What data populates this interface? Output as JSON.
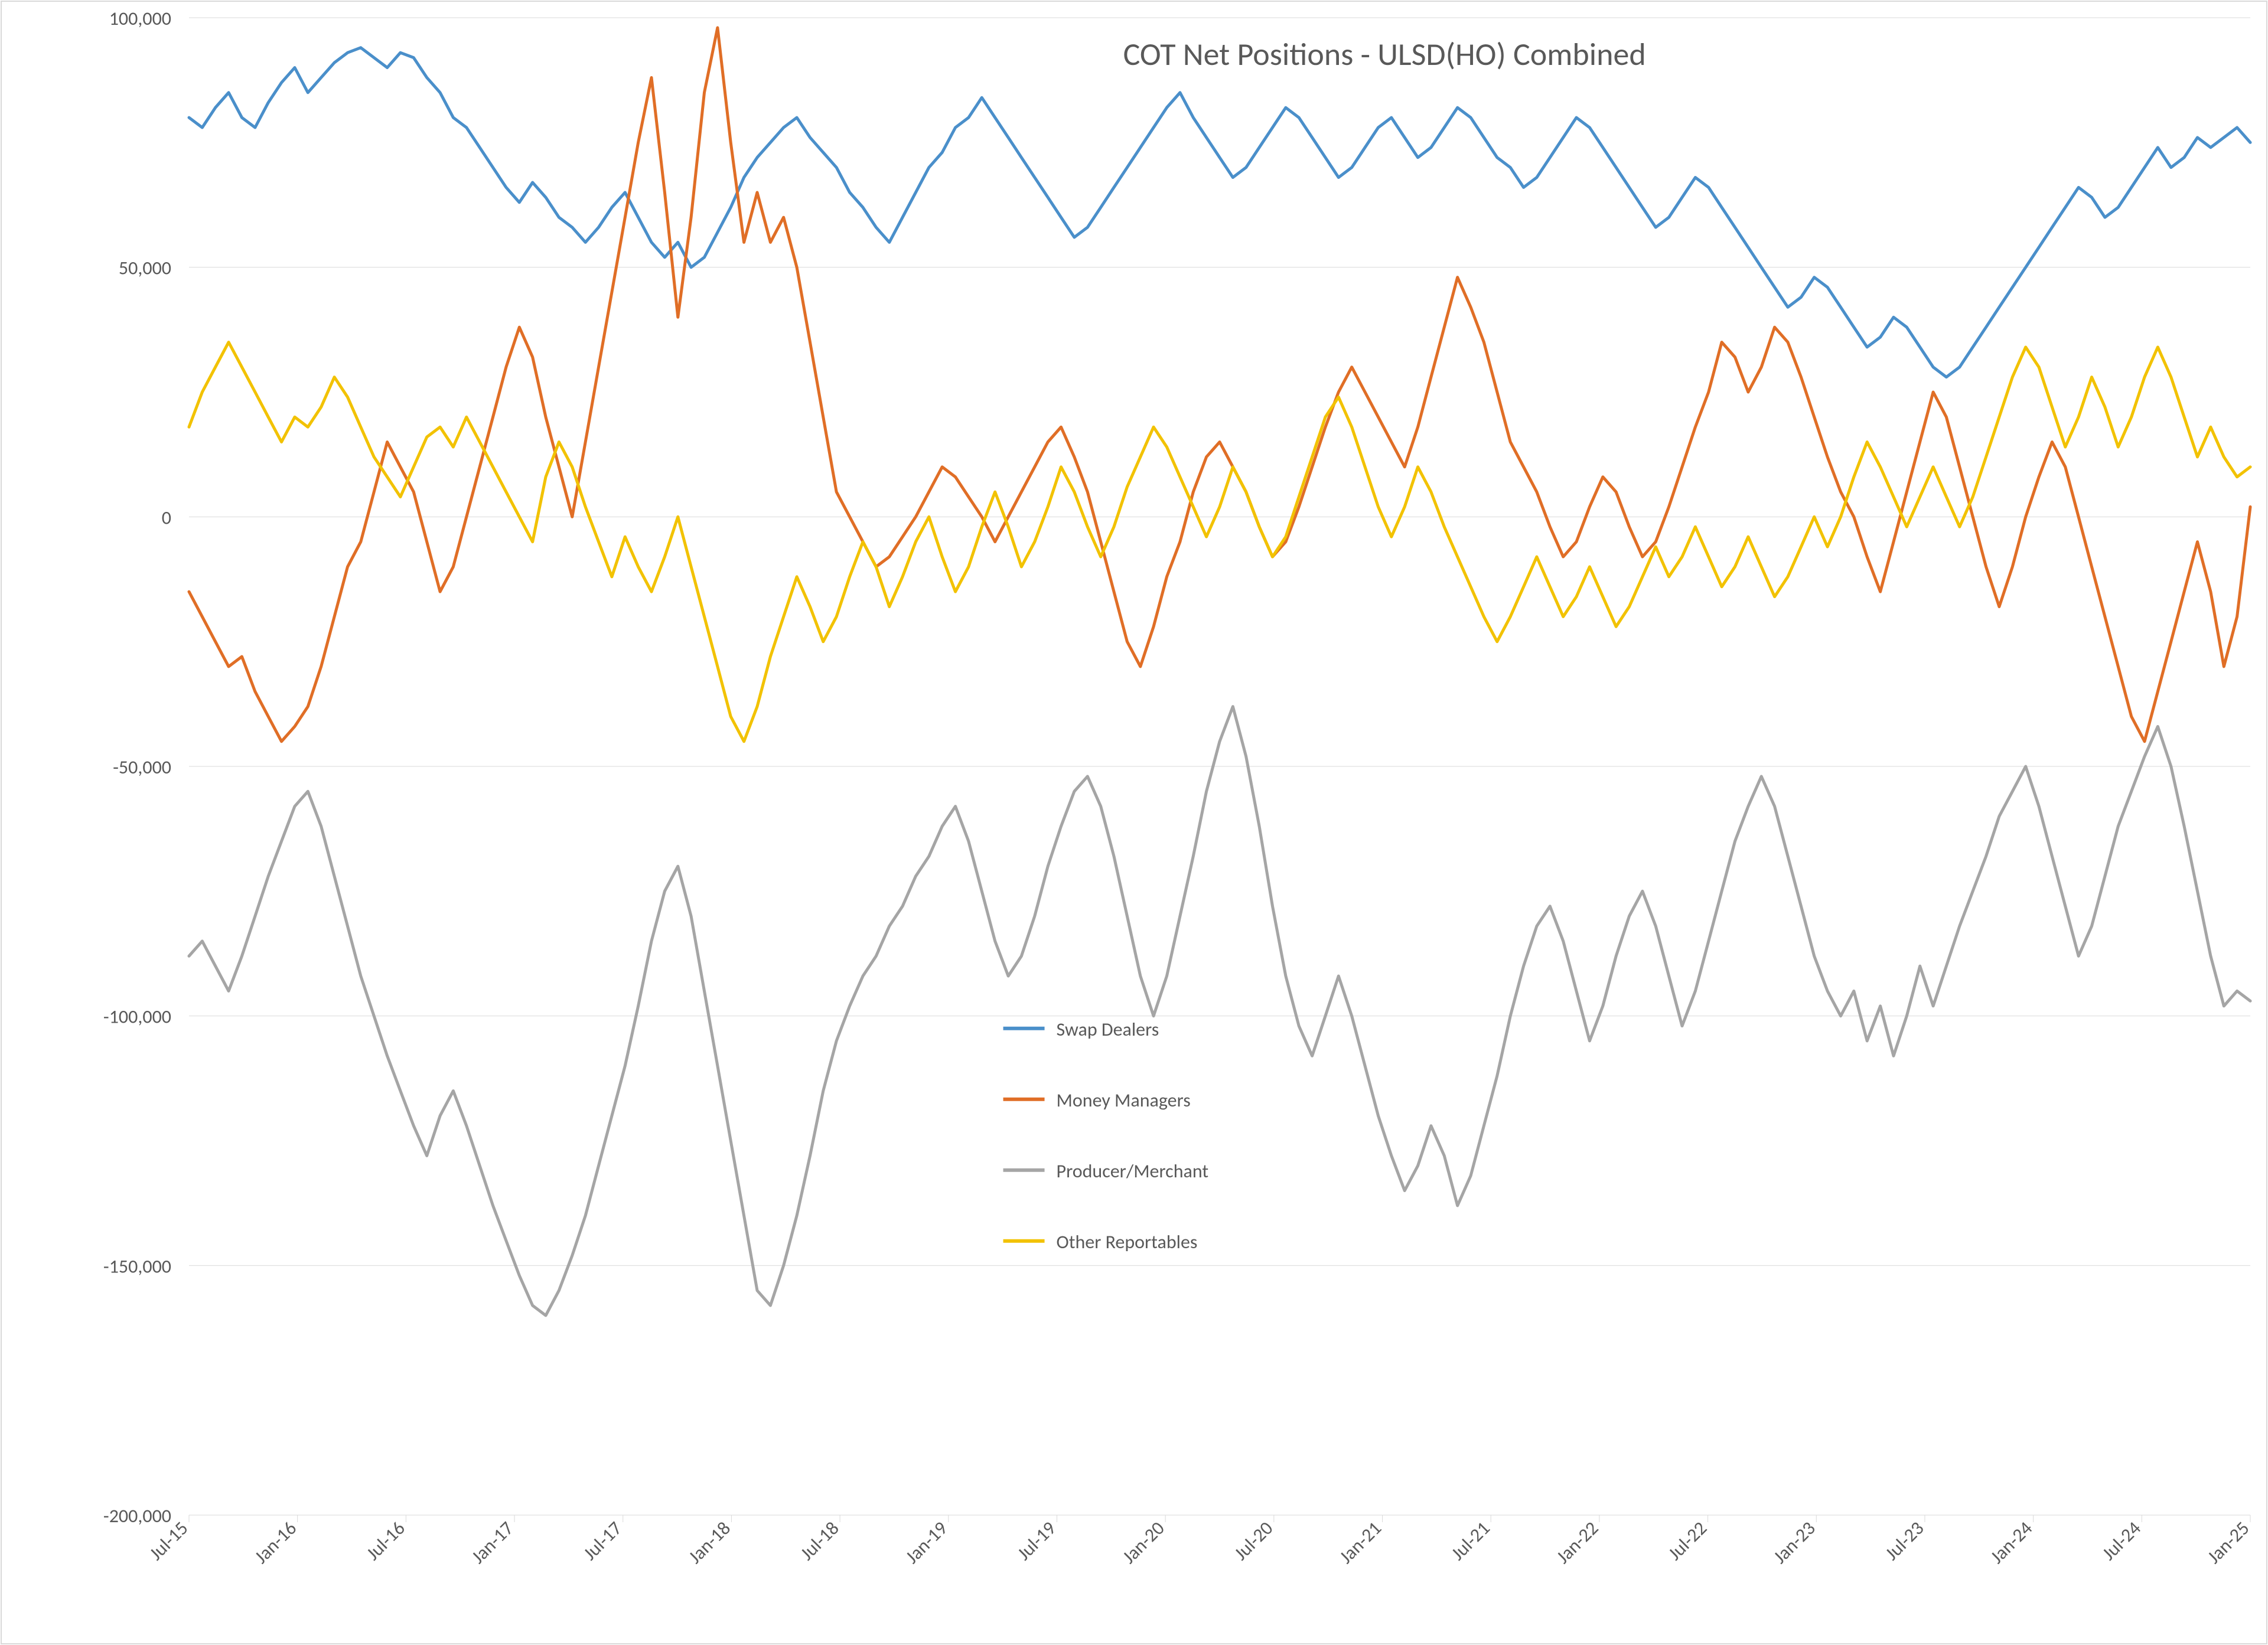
{
  "chart": {
    "type": "line",
    "title": "COT Net Positions - ULSD(HO) Combined",
    "title_fontsize": 54,
    "title_color": "#595959",
    "background_color": "#ffffff",
    "plot_border_color": "#d9d9d9",
    "grid_color": "#d9d9d9",
    "axis_label_color": "#595959",
    "axis_label_fontsize": 32,
    "line_width": 5,
    "ylim": [
      -200000,
      100000
    ],
    "ytick_step": 50000,
    "ytick_labels": [
      "-200,000",
      "-150,000",
      "-100,000",
      "-50,000",
      "0",
      "50,000",
      "100,000"
    ],
    "x_categories": [
      "Jul-15",
      "Jan-16",
      "Jul-16",
      "Jan-17",
      "Jul-17",
      "Jan-18",
      "Jul-18",
      "Jan-19",
      "Jul-19",
      "Jan-20",
      "Jul-20",
      "Jan-21",
      "Jul-21",
      "Jan-22",
      "Jul-22",
      "Jan-23",
      "Jul-23",
      "Jan-24",
      "Jul-24",
      "Jan-25"
    ],
    "legend": {
      "position": "inside-bottom-center",
      "fontsize": 32,
      "items": [
        {
          "label": "Swap Dealers",
          "color": "#4a8fca"
        },
        {
          "label": "Money Managers",
          "color": "#e06e26"
        },
        {
          "label": "Producer/Merchant",
          "color": "#a5a5a5"
        },
        {
          "label": "Other Reportables",
          "color": "#f2c200"
        }
      ]
    },
    "series": [
      {
        "name": "Swap Dealers",
        "color": "#4a8fca",
        "values": [
          80000,
          78000,
          82000,
          85000,
          80000,
          78000,
          83000,
          87000,
          90000,
          85000,
          88000,
          91000,
          93000,
          94000,
          92000,
          90000,
          93000,
          92000,
          88000,
          85000,
          80000,
          78000,
          74000,
          70000,
          66000,
          63000,
          67000,
          64000,
          60000,
          58000,
          55000,
          58000,
          62000,
          65000,
          60000,
          55000,
          52000,
          55000,
          50000,
          52000,
          57000,
          62000,
          68000,
          72000,
          75000,
          78000,
          80000,
          76000,
          73000,
          70000,
          65000,
          62000,
          58000,
          55000,
          60000,
          65000,
          70000,
          73000,
          78000,
          80000,
          84000,
          80000,
          76000,
          72000,
          68000,
          64000,
          60000,
          56000,
          58000,
          62000,
          66000,
          70000,
          74000,
          78000,
          82000,
          85000,
          80000,
          76000,
          72000,
          68000,
          70000,
          74000,
          78000,
          82000,
          80000,
          76000,
          72000,
          68000,
          70000,
          74000,
          78000,
          80000,
          76000,
          72000,
          74000,
          78000,
          82000,
          80000,
          76000,
          72000,
          70000,
          66000,
          68000,
          72000,
          76000,
          80000,
          78000,
          74000,
          70000,
          66000,
          62000,
          58000,
          60000,
          64000,
          68000,
          66000,
          62000,
          58000,
          54000,
          50000,
          46000,
          42000,
          44000,
          48000,
          46000,
          42000,
          38000,
          34000,
          36000,
          40000,
          38000,
          34000,
          30000,
          28000,
          30000,
          34000,
          38000,
          42000,
          46000,
          50000,
          54000,
          58000,
          62000,
          66000,
          64000,
          60000,
          62000,
          66000,
          70000,
          74000,
          70000,
          72000,
          76000,
          74000,
          76000,
          78000,
          75000
        ]
      },
      {
        "name": "Money Managers",
        "color": "#e06e26",
        "values": [
          -15000,
          -20000,
          -25000,
          -30000,
          -28000,
          -35000,
          -40000,
          -45000,
          -42000,
          -38000,
          -30000,
          -20000,
          -10000,
          -5000,
          5000,
          15000,
          10000,
          5000,
          -5000,
          -15000,
          -10000,
          0,
          10000,
          20000,
          30000,
          38000,
          32000,
          20000,
          10000,
          0,
          15000,
          30000,
          45000,
          60000,
          75000,
          88000,
          65000,
          40000,
          60000,
          85000,
          98000,
          75000,
          55000,
          65000,
          55000,
          60000,
          50000,
          35000,
          20000,
          5000,
          0,
          -5000,
          -10000,
          -8000,
          -4000,
          0,
          5000,
          10000,
          8000,
          4000,
          0,
          -5000,
          0,
          5000,
          10000,
          15000,
          18000,
          12000,
          5000,
          -5000,
          -15000,
          -25000,
          -30000,
          -22000,
          -12000,
          -5000,
          5000,
          12000,
          15000,
          10000,
          5000,
          -2000,
          -8000,
          -5000,
          2000,
          10000,
          18000,
          25000,
          30000,
          25000,
          20000,
          15000,
          10000,
          18000,
          28000,
          38000,
          48000,
          42000,
          35000,
          25000,
          15000,
          10000,
          5000,
          -2000,
          -8000,
          -5000,
          2000,
          8000,
          5000,
          -2000,
          -8000,
          -5000,
          2000,
          10000,
          18000,
          25000,
          35000,
          32000,
          25000,
          30000,
          38000,
          35000,
          28000,
          20000,
          12000,
          5000,
          0,
          -8000,
          -15000,
          -5000,
          5000,
          15000,
          25000,
          20000,
          10000,
          0,
          -10000,
          -18000,
          -10000,
          0,
          8000,
          15000,
          10000,
          0,
          -10000,
          -20000,
          -30000,
          -40000,
          -45000,
          -35000,
          -25000,
          -15000,
          -5000,
          -15000,
          -30000,
          -20000,
          2000
        ]
      },
      {
        "name": "Producer/Merchant",
        "color": "#a5a5a5",
        "values": [
          -88000,
          -85000,
          -90000,
          -95000,
          -88000,
          -80000,
          -72000,
          -65000,
          -58000,
          -55000,
          -62000,
          -72000,
          -82000,
          -92000,
          -100000,
          -108000,
          -115000,
          -122000,
          -128000,
          -120000,
          -115000,
          -122000,
          -130000,
          -138000,
          -145000,
          -152000,
          -158000,
          -160000,
          -155000,
          -148000,
          -140000,
          -130000,
          -120000,
          -110000,
          -98000,
          -85000,
          -75000,
          -70000,
          -80000,
          -95000,
          -110000,
          -125000,
          -140000,
          -155000,
          -158000,
          -150000,
          -140000,
          -128000,
          -115000,
          -105000,
          -98000,
          -92000,
          -88000,
          -82000,
          -78000,
          -72000,
          -68000,
          -62000,
          -58000,
          -65000,
          -75000,
          -85000,
          -92000,
          -88000,
          -80000,
          -70000,
          -62000,
          -55000,
          -52000,
          -58000,
          -68000,
          -80000,
          -92000,
          -100000,
          -92000,
          -80000,
          -68000,
          -55000,
          -45000,
          -38000,
          -48000,
          -62000,
          -78000,
          -92000,
          -102000,
          -108000,
          -100000,
          -92000,
          -100000,
          -110000,
          -120000,
          -128000,
          -135000,
          -130000,
          -122000,
          -128000,
          -138000,
          -132000,
          -122000,
          -112000,
          -100000,
          -90000,
          -82000,
          -78000,
          -85000,
          -95000,
          -105000,
          -98000,
          -88000,
          -80000,
          -75000,
          -82000,
          -92000,
          -102000,
          -95000,
          -85000,
          -75000,
          -65000,
          -58000,
          -52000,
          -58000,
          -68000,
          -78000,
          -88000,
          -95000,
          -100000,
          -95000,
          -105000,
          -98000,
          -108000,
          -100000,
          -90000,
          -98000,
          -90000,
          -82000,
          -75000,
          -68000,
          -60000,
          -55000,
          -50000,
          -58000,
          -68000,
          -78000,
          -88000,
          -82000,
          -72000,
          -62000,
          -55000,
          -48000,
          -42000,
          -50000,
          -62000,
          -75000,
          -88000,
          -98000,
          -95000,
          -97000
        ]
      },
      {
        "name": "Other Reportables",
        "color": "#f2c200",
        "values": [
          18000,
          25000,
          30000,
          35000,
          30000,
          25000,
          20000,
          15000,
          20000,
          18000,
          22000,
          28000,
          24000,
          18000,
          12000,
          8000,
          4000,
          10000,
          16000,
          18000,
          14000,
          20000,
          15000,
          10000,
          5000,
          0,
          -5000,
          8000,
          15000,
          10000,
          2000,
          -5000,
          -12000,
          -4000,
          -10000,
          -15000,
          -8000,
          0,
          -10000,
          -20000,
          -30000,
          -40000,
          -45000,
          -38000,
          -28000,
          -20000,
          -12000,
          -18000,
          -25000,
          -20000,
          -12000,
          -5000,
          -10000,
          -18000,
          -12000,
          -5000,
          0,
          -8000,
          -15000,
          -10000,
          -2000,
          5000,
          -2000,
          -10000,
          -5000,
          2000,
          10000,
          5000,
          -2000,
          -8000,
          -2000,
          6000,
          12000,
          18000,
          14000,
          8000,
          2000,
          -4000,
          2000,
          10000,
          5000,
          -2000,
          -8000,
          -4000,
          4000,
          12000,
          20000,
          24000,
          18000,
          10000,
          2000,
          -4000,
          2000,
          10000,
          5000,
          -2000,
          -8000,
          -14000,
          -20000,
          -25000,
          -20000,
          -14000,
          -8000,
          -14000,
          -20000,
          -16000,
          -10000,
          -16000,
          -22000,
          -18000,
          -12000,
          -6000,
          -12000,
          -8000,
          -2000,
          -8000,
          -14000,
          -10000,
          -4000,
          -10000,
          -16000,
          -12000,
          -6000,
          0,
          -6000,
          0,
          8000,
          15000,
          10000,
          4000,
          -2000,
          4000,
          10000,
          4000,
          -2000,
          4000,
          12000,
          20000,
          28000,
          34000,
          30000,
          22000,
          14000,
          20000,
          28000,
          22000,
          14000,
          20000,
          28000,
          34000,
          28000,
          20000,
          12000,
          18000,
          12000,
          8000,
          10000
        ]
      }
    ]
  }
}
